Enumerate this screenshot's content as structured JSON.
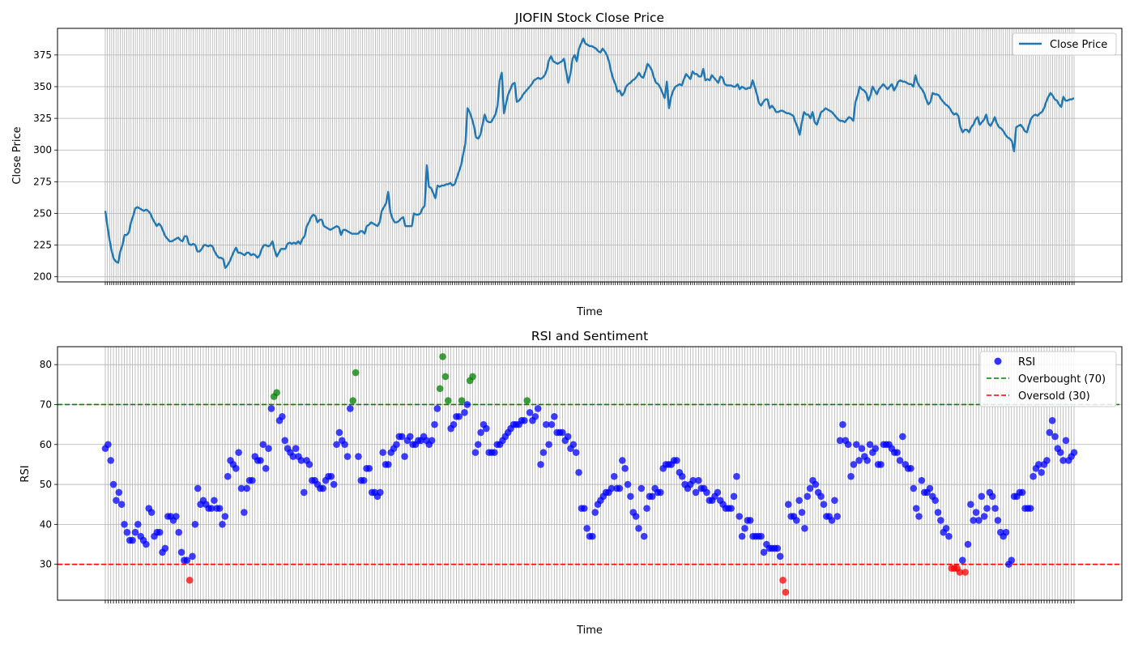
{
  "chart_data": [
    {
      "type": "line",
      "title": "JIOFIN Stock Close Price",
      "xlabel": "Time",
      "ylabel": "Close Price",
      "ylim": [
        196,
        396
      ],
      "yticks": [
        200,
        225,
        250,
        275,
        300,
        325,
        350,
        375
      ],
      "grid": true,
      "legend_position": "top-right",
      "series": [
        {
          "name": "Close Price",
          "color": "#1f77b4",
          "values": [
            252,
            240,
            229,
            220,
            214,
            212,
            211,
            220,
            225,
            233,
            233,
            235,
            243,
            248,
            254,
            255,
            254,
            253,
            252,
            253,
            252,
            250,
            246,
            243,
            240,
            242,
            240,
            236,
            232,
            230,
            228,
            228,
            229,
            230,
            231,
            229,
            228,
            232,
            232,
            226,
            225,
            226,
            225,
            220,
            220,
            222,
            225,
            225,
            224,
            225,
            224,
            220,
            217,
            215,
            215,
            214,
            207,
            209,
            212,
            216,
            220,
            223,
            219,
            219,
            218,
            217,
            219,
            219,
            217,
            218,
            217,
            215,
            217,
            222,
            225,
            225,
            224,
            225,
            228,
            221,
            216,
            219,
            222,
            222,
            222,
            226,
            227,
            226,
            227,
            226,
            228,
            226,
            230,
            232,
            240,
            243,
            247,
            249,
            248,
            243,
            245,
            245,
            240,
            239,
            238,
            237,
            238,
            239,
            240,
            239,
            233,
            237,
            237,
            236,
            235,
            234,
            234,
            234,
            234,
            236,
            236,
            234,
            240,
            241,
            243,
            242,
            241,
            240,
            243,
            252,
            255,
            258,
            267,
            251,
            246,
            243,
            243,
            244,
            246,
            247,
            240,
            240,
            240,
            240,
            250,
            249,
            249,
            250,
            254,
            256,
            288,
            271,
            270,
            266,
            262,
            272,
            271,
            272,
            272,
            273,
            273,
            274,
            272,
            273,
            278,
            283,
            288,
            297,
            305,
            333,
            330,
            325,
            319,
            310,
            309,
            312,
            320,
            328,
            323,
            322,
            322,
            325,
            328,
            335,
            355,
            361,
            329,
            337,
            344,
            348,
            352,
            353,
            338,
            339,
            341,
            344,
            346,
            348,
            350,
            352,
            355,
            356,
            357,
            356,
            357,
            359,
            363,
            371,
            374,
            370,
            369,
            368,
            369,
            370,
            372,
            362,
            353,
            360,
            372,
            375,
            370,
            380,
            384,
            388,
            384,
            383,
            382,
            382,
            381,
            380,
            378,
            377,
            380,
            378,
            375,
            370,
            362,
            356,
            352,
            346,
            347,
            343,
            345,
            350,
            352,
            353,
            355,
            356,
            358,
            361,
            358,
            357,
            362,
            368,
            366,
            363,
            357,
            353,
            352,
            349,
            345,
            341,
            354,
            333,
            342,
            347,
            350,
            351,
            352,
            351,
            356,
            360,
            358,
            356,
            362,
            360,
            360,
            358,
            358,
            364,
            355,
            356,
            355,
            359,
            357,
            355,
            353,
            358,
            357,
            352,
            351,
            351,
            351,
            350,
            350,
            352,
            348,
            350,
            349,
            348,
            349,
            349,
            355,
            350,
            344,
            337,
            335,
            338,
            340,
            340,
            333,
            335,
            333,
            330,
            330,
            331,
            331,
            330,
            329,
            329,
            328,
            327,
            322,
            318,
            312,
            322,
            330,
            328,
            328,
            325,
            330,
            322,
            320,
            325,
            330,
            331,
            333,
            332,
            331,
            330,
            328,
            326,
            324,
            323,
            323,
            322,
            324,
            326,
            325,
            323,
            338,
            343,
            350,
            348,
            347,
            345,
            339,
            343,
            350,
            347,
            344,
            348,
            350,
            352,
            350,
            348,
            350,
            352,
            347,
            350,
            354,
            355,
            354,
            354,
            353,
            352,
            352,
            350,
            359,
            353,
            350,
            348,
            345,
            340,
            336,
            338,
            345,
            344,
            344,
            343,
            340,
            338,
            336,
            335,
            333,
            330,
            328,
            329,
            327,
            318,
            314,
            316,
            316,
            314,
            318,
            320,
            324,
            326,
            320,
            322,
            324,
            328,
            321,
            319,
            322,
            326,
            321,
            318,
            317,
            315,
            312,
            310,
            309,
            307,
            299,
            318,
            319,
            320,
            318,
            315,
            314,
            320,
            325,
            327,
            328,
            327,
            329,
            330,
            333,
            338,
            342,
            345,
            343,
            340,
            339,
            336,
            334,
            342,
            339,
            339,
            340,
            340,
            341
          ]
        }
      ]
    },
    {
      "type": "scatter",
      "title": "RSI and Sentiment",
      "xlabel": "Time",
      "ylabel": "RSI",
      "ylim": [
        21,
        84.5
      ],
      "yticks": [
        30,
        40,
        50,
        60,
        70,
        80
      ],
      "grid": true,
      "legend_position": "top-right",
      "series": [
        {
          "name": "RSI",
          "color_normal": "#0000ff",
          "color_overbought": "#008000",
          "color_oversold": "#ff0000",
          "values": [
            59,
            60,
            56,
            50,
            46,
            48,
            45,
            40,
            38,
            36,
            36,
            38,
            40,
            37,
            36,
            35,
            44,
            43,
            37,
            38,
            38,
            33,
            34,
            42,
            42,
            41,
            42,
            38,
            33,
            31,
            31,
            26,
            32,
            40,
            49,
            45,
            46,
            45,
            44,
            44,
            46,
            44,
            44,
            40,
            42,
            52,
            56,
            55,
            54,
            58,
            49,
            43,
            49,
            51,
            51,
            57,
            56,
            56,
            60,
            54,
            59,
            69,
            72,
            73,
            66,
            67,
            61,
            59,
            58,
            57,
            59,
            57,
            56,
            48,
            56,
            55,
            51,
            51,
            50,
            49,
            49,
            51,
            52,
            52,
            50,
            60,
            63,
            61,
            60,
            57,
            69,
            71,
            78,
            57,
            51,
            51,
            54,
            54,
            48,
            48,
            47,
            48,
            58,
            55,
            55,
            58,
            59,
            60,
            62,
            62,
            57,
            61,
            62,
            60,
            60,
            61,
            61,
            62,
            61,
            60,
            61,
            65,
            69,
            74,
            82,
            77,
            71,
            64,
            65,
            67,
            67,
            71,
            68,
            70,
            76,
            77,
            58,
            60,
            63,
            65,
            64,
            58,
            58,
            58,
            60,
            60,
            61,
            62,
            63,
            64,
            65,
            65,
            65,
            66,
            66,
            71,
            68,
            66,
            67,
            69,
            55,
            58,
            65,
            60,
            65,
            67,
            63,
            63,
            63,
            61,
            62,
            59,
            60,
            58,
            53,
            44,
            44,
            39,
            37,
            37,
            43,
            45,
            46,
            47,
            48,
            48,
            49,
            52,
            49,
            49,
            56,
            54,
            50,
            47,
            43,
            42,
            39,
            49,
            37,
            44,
            47,
            47,
            49,
            48,
            48,
            54,
            55,
            55,
            55,
            56,
            56,
            53,
            52,
            50,
            49,
            50,
            51,
            48,
            51,
            49,
            49,
            48,
            46,
            46,
            47,
            48,
            46,
            45,
            44,
            44,
            44,
            47,
            52,
            42,
            37,
            39,
            41,
            41,
            37,
            37,
            37,
            37,
            33,
            35,
            34,
            34,
            34,
            34,
            32,
            26,
            23,
            45,
            42,
            42,
            41,
            46,
            43,
            39,
            47,
            49,
            51,
            50,
            48,
            47,
            45,
            42,
            42,
            41,
            46,
            42,
            61,
            65,
            61,
            60,
            52,
            55,
            60,
            56,
            59,
            57,
            56,
            60,
            58,
            59,
            55,
            55,
            60,
            60,
            60,
            59,
            58,
            58,
            56,
            62,
            55,
            54,
            54,
            49,
            44,
            42,
            51,
            48,
            48,
            49,
            47,
            46,
            43,
            41,
            38,
            39,
            37,
            29,
            29,
            29,
            28,
            31,
            28,
            35,
            45,
            41,
            43,
            41,
            47,
            42,
            44,
            48,
            47,
            44,
            41,
            38,
            37,
            38,
            30,
            31,
            47,
            47,
            48,
            48,
            44,
            44,
            44,
            52,
            54,
            55,
            53,
            55,
            56,
            63,
            66,
            62,
            59,
            58,
            56,
            61,
            56,
            57,
            58
          ]
        },
        {
          "name": "Overbought (70)",
          "color": "#008000",
          "value": 70
        },
        {
          "name": "Oversold (30)",
          "color": "#ff0000",
          "value": 30
        }
      ]
    }
  ]
}
